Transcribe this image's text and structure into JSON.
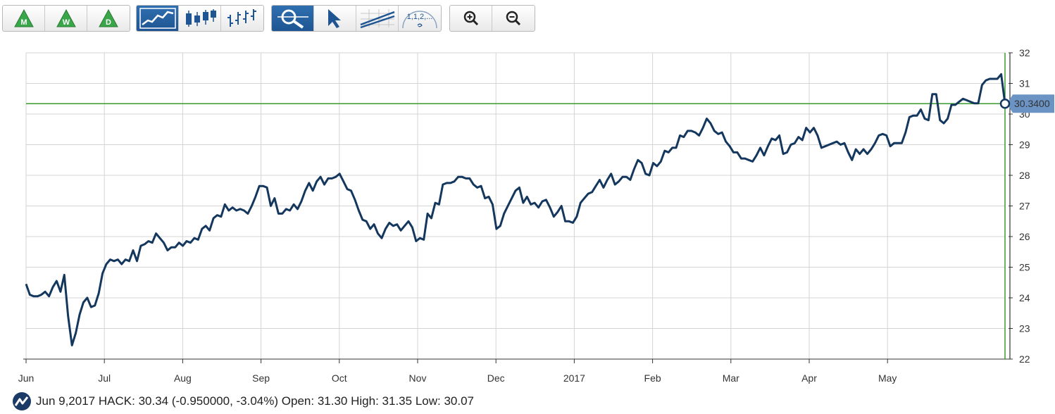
{
  "toolbar": {
    "period_buttons": [
      {
        "letter": "M",
        "icon": "monthly-triangle-icon"
      },
      {
        "letter": "W",
        "icon": "weekly-triangle-icon"
      },
      {
        "letter": "D",
        "icon": "daily-triangle-icon"
      }
    ],
    "chart_type_buttons": [
      "line-chart-icon",
      "candlestick-icon",
      "ohlc-bar-icon"
    ],
    "tool_buttons": [
      "zoom-area-icon",
      "pointer-icon",
      "trendline-icon",
      "fibonacci-icon"
    ],
    "fib_label": "1,1,2,...",
    "zoom_buttons": [
      "zoom-in-icon",
      "zoom-out-icon"
    ]
  },
  "chart_data": {
    "type": "line",
    "ticker": "HACK",
    "x_labels": [
      "Jun",
      "Jul",
      "Aug",
      "Sep",
      "Oct",
      "Nov",
      "Dec",
      "2017",
      "Feb",
      "Mar",
      "Apr",
      "May"
    ],
    "y_ticks": [
      22,
      23,
      24,
      25,
      26,
      27,
      28,
      29,
      30,
      31,
      32
    ],
    "ylim": [
      22,
      32
    ],
    "current_value_label": "30.3400",
    "current_value": 30.34,
    "values": [
      24.45,
      24.1,
      24.05,
      24.05,
      24.1,
      24.2,
      24.05,
      24.35,
      24.55,
      24.2,
      24.75,
      23.4,
      22.45,
      22.85,
      23.45,
      23.85,
      24.0,
      23.7,
      23.75,
      24.15,
      24.8,
      25.1,
      25.25,
      25.2,
      25.25,
      25.1,
      25.25,
      25.2,
      25.55,
      25.2,
      25.7,
      25.75,
      25.85,
      25.8,
      26.1,
      25.95,
      25.8,
      25.55,
      25.65,
      25.65,
      25.8,
      25.7,
      25.85,
      25.8,
      25.95,
      25.9,
      26.25,
      26.35,
      26.2,
      26.6,
      26.7,
      26.65,
      27.05,
      26.85,
      26.95,
      26.85,
      26.9,
      26.85,
      26.75,
      27.0,
      27.3,
      27.65,
      27.65,
      27.6,
      27.0,
      27.25,
      26.75,
      26.75,
      26.9,
      26.85,
      27.05,
      26.9,
      27.15,
      27.5,
      27.75,
      27.5,
      27.8,
      27.95,
      27.7,
      27.9,
      27.9,
      27.95,
      28.05,
      27.8,
      27.55,
      27.5,
      27.2,
      26.85,
      26.55,
      26.5,
      26.25,
      26.4,
      26.1,
      25.95,
      26.25,
      26.45,
      26.35,
      26.4,
      26.2,
      26.35,
      26.5,
      26.3,
      25.85,
      25.95,
      25.9,
      26.75,
      26.6,
      27.1,
      27.05,
      27.7,
      27.75,
      27.75,
      27.8,
      27.95,
      27.95,
      27.9,
      27.9,
      27.7,
      27.6,
      27.65,
      27.25,
      27.3,
      27.05,
      26.25,
      26.35,
      26.75,
      27.0,
      27.25,
      27.5,
      27.6,
      27.1,
      27.3,
      27.05,
      27.1,
      26.95,
      27.15,
      27.2,
      26.95,
      26.65,
      26.8,
      27.0,
      26.5,
      26.5,
      26.45,
      26.65,
      27.1,
      27.25,
      27.4,
      27.45,
      27.65,
      27.85,
      27.6,
      27.85,
      28.05,
      27.7,
      27.8,
      27.95,
      27.95,
      27.85,
      28.2,
      28.5,
      28.4,
      28.05,
      28.0,
      28.4,
      28.3,
      28.45,
      28.8,
      28.75,
      28.9,
      28.9,
      29.3,
      29.25,
      29.45,
      29.45,
      29.4,
      29.3,
      29.55,
      29.85,
      29.7,
      29.45,
      29.35,
      29.4,
      29.1,
      28.95,
      28.75,
      28.75,
      28.55,
      28.55,
      28.5,
      28.45,
      28.65,
      28.9,
      28.65,
      28.95,
      29.2,
      29.15,
      29.3,
      28.7,
      28.75,
      29.0,
      29.05,
      29.25,
      29.15,
      29.55,
      29.4,
      29.55,
      29.3,
      28.9,
      28.95,
      29.0,
      29.05,
      29.1,
      29.0,
      29.05,
      28.75,
      28.5,
      28.85,
      28.7,
      28.85,
      28.7,
      28.85,
      29.05,
      29.3,
      29.35,
      29.3,
      28.95,
      29.05,
      29.05,
      29.05,
      29.4,
      29.9,
      29.95,
      29.95,
      30.15,
      29.85,
      29.8,
      30.65,
      30.65,
      29.8,
      29.7,
      29.85,
      30.3,
      30.3,
      30.4,
      30.5,
      30.45,
      30.4,
      30.35,
      30.35,
      30.95,
      31.1,
      31.15,
      31.15,
      31.15,
      31.3,
      30.34
    ]
  },
  "footer": {
    "date": "Jun 9,2017",
    "ticker": "HACK",
    "close": "30.34",
    "change": "(-0.950000, -3.04%)",
    "open_label": "Open:",
    "open": "31.30",
    "high_label": "High:",
    "high": "31.35",
    "low_label": "Low:",
    "low": "30.07"
  },
  "colors": {
    "line": "#14375e",
    "grid": "#d4d4d4",
    "crosshair": "#3a9b2f",
    "badge": "#6b94c5",
    "active_button": "#2462a3"
  }
}
